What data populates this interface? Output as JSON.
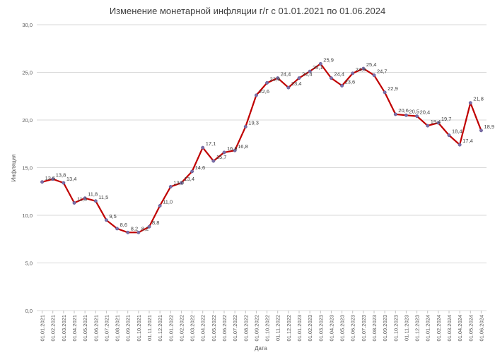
{
  "chart_data": {
    "type": "line",
    "title": "Изменение монетарной инфляции г/г с 01.01.2021 по 01.06.2024",
    "xlabel": "Дата",
    "ylabel": "Инфляция",
    "ylim": [
      0,
      30
    ],
    "yticks": [
      "0,0",
      "5,0",
      "10,0",
      "15,0",
      "20,0",
      "25,0",
      "30,0"
    ],
    "grid": true,
    "legend": "none",
    "line_color": "#c00000",
    "marker_color": "#7b6fa8",
    "categories": [
      "01.01.2021",
      "01.02.2021",
      "01.03.2021",
      "01.04.2021",
      "01.05.2021",
      "01.06.2021",
      "01.07.2021",
      "01.08.2021",
      "01.09.2021",
      "01.10.2021",
      "01.11.2021",
      "01.12.2021",
      "01.01.2022",
      "01.02.2022",
      "01.03.2022",
      "01.04.2022",
      "01.05.2022",
      "01.06.2022",
      "01.07.2022",
      "01.08.2022",
      "01.09.2022",
      "01.10.2022",
      "01.11.2022",
      "01.12.2022",
      "01.01.2023",
      "01.02.2023",
      "01.03.2023",
      "01.04.2023",
      "01.05.2023",
      "01.06.2023",
      "01.07.2023",
      "01.08.2023",
      "01.09.2023",
      "01.10.2023",
      "01.11.2023",
      "01.12.2023",
      "01.01.2024",
      "01.02.2024",
      "01.03.2024",
      "01.04.2024",
      "01.05.2024",
      "01.06.2024"
    ],
    "values": [
      13.5,
      13.8,
      13.4,
      11.3,
      11.8,
      11.5,
      9.5,
      8.6,
      8.2,
      8.2,
      8.8,
      11.0,
      13.0,
      13.4,
      14.6,
      17.1,
      15.7,
      16.6,
      16.8,
      19.3,
      22.6,
      23.9,
      24.4,
      23.4,
      24.4,
      25.1,
      25.9,
      24.4,
      23.6,
      24.9,
      25.4,
      24.7,
      22.9,
      20.6,
      20.5,
      20.4,
      19.4,
      19.7,
      18.4,
      17.4,
      21.8,
      18.9
    ],
    "data_labels": [
      "13,5",
      "13,8",
      "13,4",
      "11,3",
      "11,8",
      "11,5",
      "9,5",
      "8,6",
      "8,2",
      "8,2",
      "8,8",
      "11,0",
      "13,0",
      "13,4",
      "14,6",
      "17,1",
      "15,7",
      "16,6",
      "16,8",
      "19,3",
      "22,6",
      "23,9",
      "24,4",
      "23,4",
      "24,4",
      "25,1",
      "25,9",
      "24,4",
      "23,6",
      "24,9",
      "25,4",
      "24,7",
      "22,9",
      "20,6",
      "20,5",
      "20,4",
      "19,4",
      "19,7",
      "18,4",
      "17,4",
      "21,8",
      "18,9"
    ]
  }
}
